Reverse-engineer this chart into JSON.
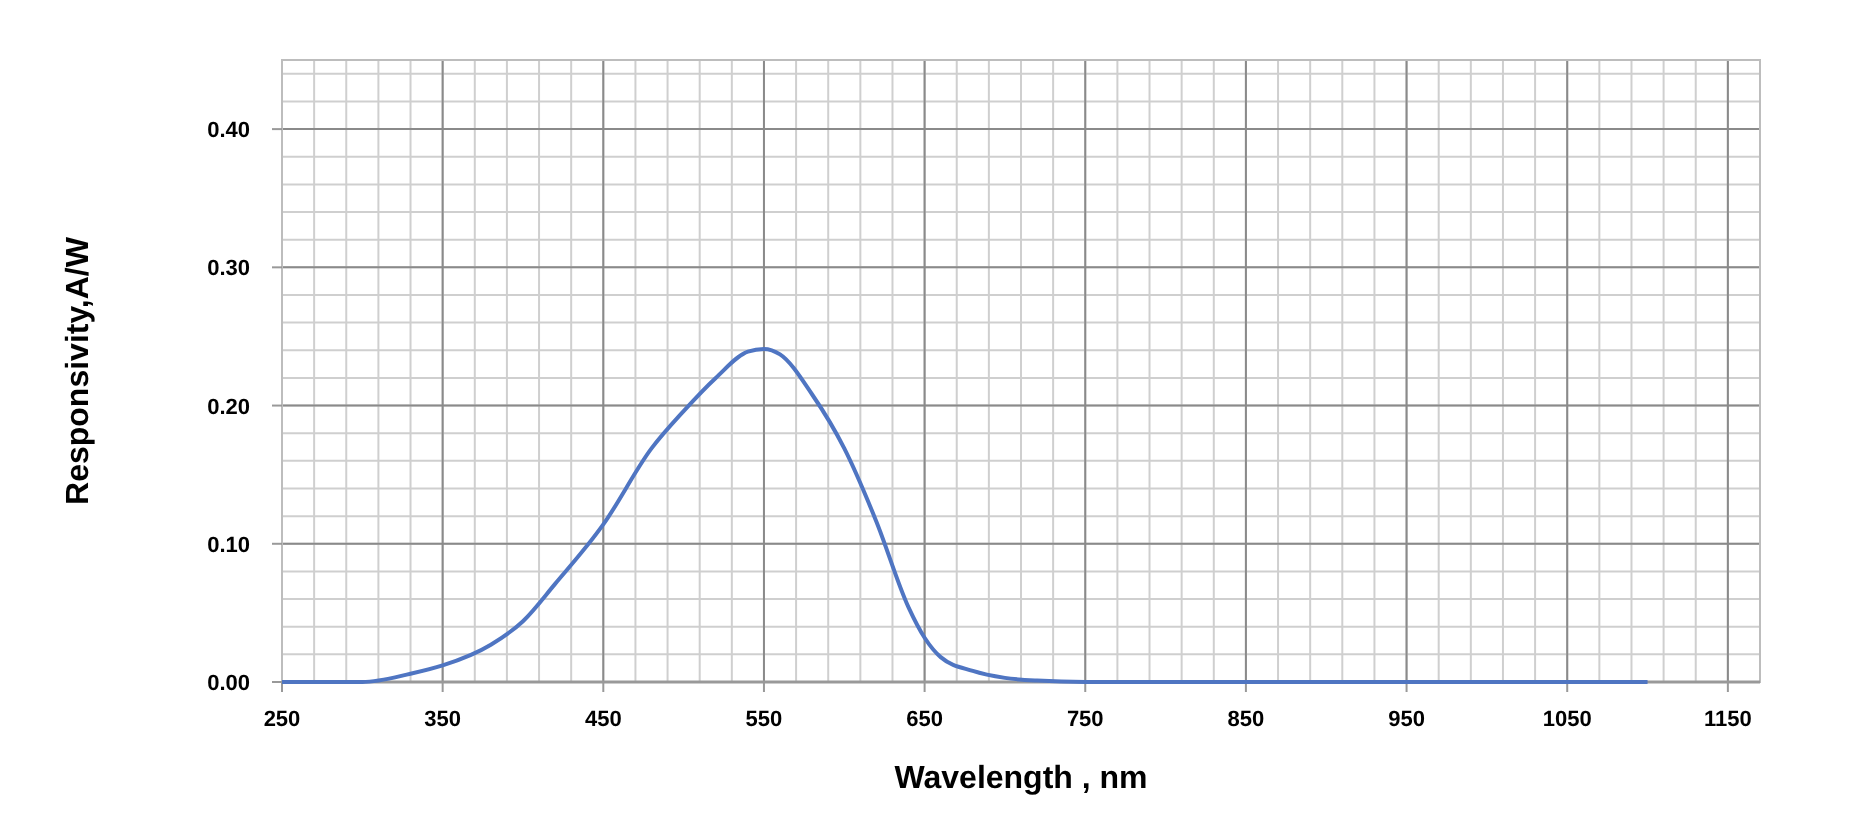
{
  "chart_data": {
    "type": "line",
    "xlabel": "Wavelength , nm",
    "ylabel": "Responsivity,A/W",
    "x": [
      250,
      300,
      330,
      350,
      380,
      400,
      420,
      450,
      480,
      500,
      520,
      540,
      550,
      560,
      580,
      600,
      620,
      640,
      650,
      660,
      680,
      700,
      720,
      750,
      800,
      900,
      1000,
      1100
    ],
    "series": [
      {
        "color": "#4f75c2",
        "values": [
          0,
          0,
          0.006,
          0.012,
          0.027,
          0.044,
          0.071,
          0.114,
          0.169,
          0.196,
          0.22,
          0.239,
          0.241,
          0.237,
          0.208,
          0.169,
          0.116,
          0.054,
          0.032,
          0.018,
          0.008,
          0.003,
          0.001,
          0,
          0,
          0,
          0,
          0
        ]
      }
    ],
    "xlim": [
      250,
      1170
    ],
    "xticks": [
      250,
      350,
      450,
      550,
      650,
      750,
      850,
      950,
      1050,
      1150
    ],
    "ylim": [
      0,
      0.45
    ],
    "yticks": [
      {
        "value": 0,
        "label": "0.00"
      },
      {
        "value": 0.1,
        "label": "0.10"
      },
      {
        "value": 0.2,
        "label": "0.20"
      },
      {
        "value": 0.3,
        "label": "0.30"
      },
      {
        "value": 0.4,
        "label": "0.40"
      }
    ],
    "grid": true,
    "marker": "none",
    "line_style": "solid"
  }
}
